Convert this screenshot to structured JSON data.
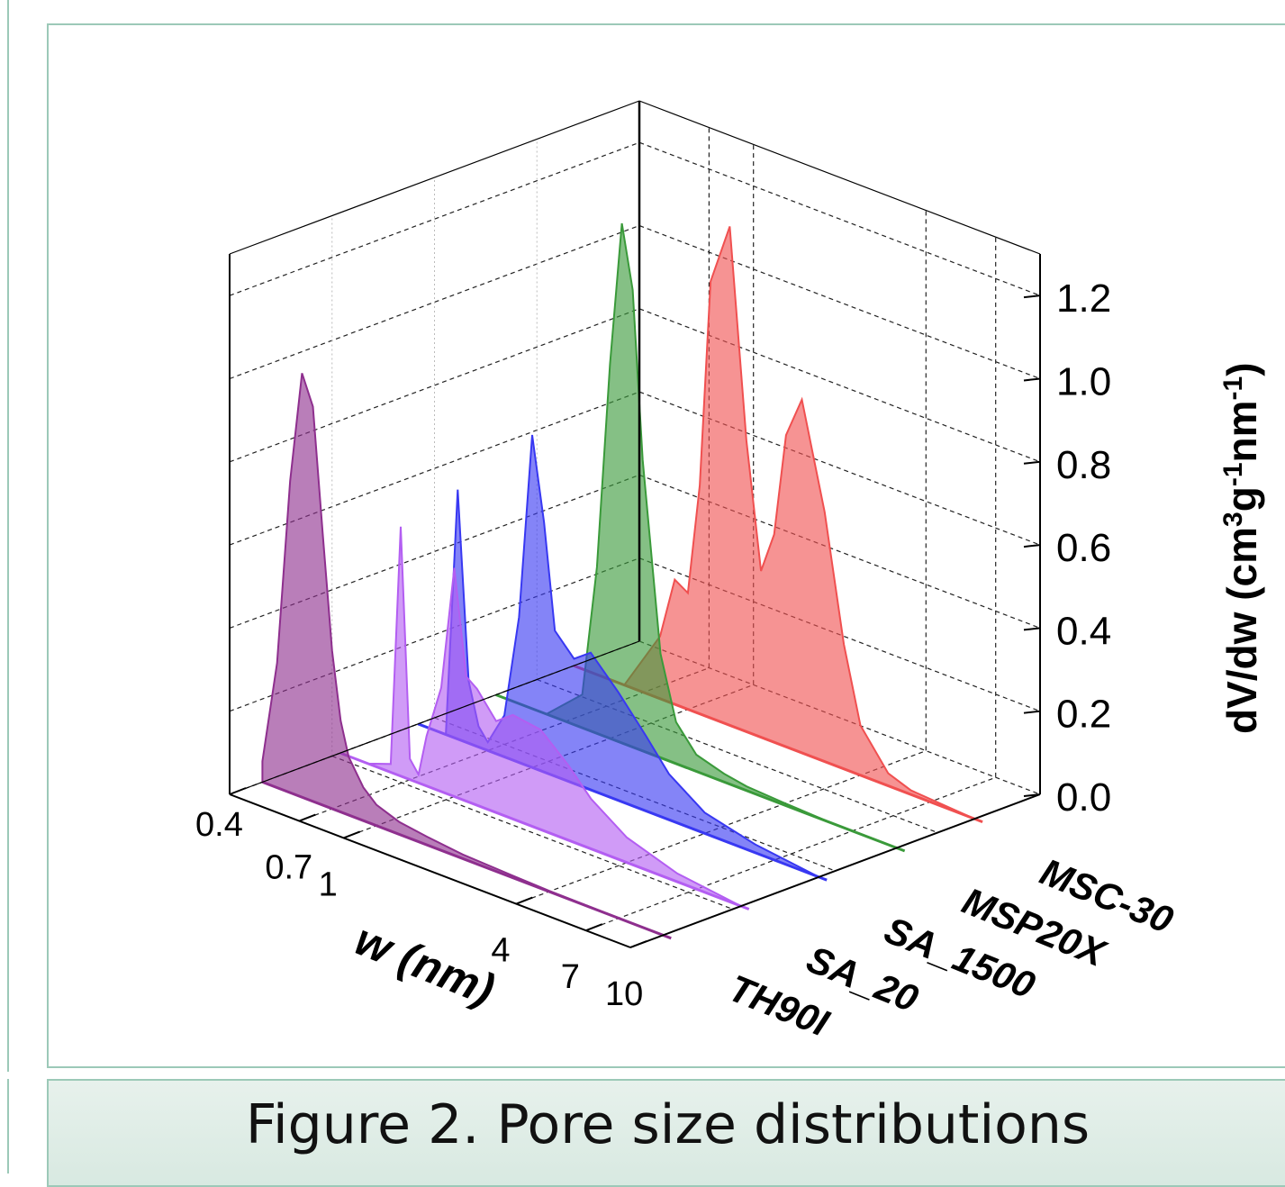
{
  "caption": "Figure 2. Pore size distributions",
  "chart_data": {
    "type": "area",
    "projection": "3d-waterfall",
    "x_axis": {
      "label": "w (nm)",
      "ticks": [
        "0.4",
        "0.7",
        "1",
        "4",
        "7",
        "10"
      ],
      "scale": "log",
      "range": [
        0.4,
        10
      ]
    },
    "z_axis": {
      "label_main": "dV/dw (cm",
      "label_sup1": "3",
      "label_mid1": "g",
      "label_sup2": "-1",
      "label_mid2": "nm",
      "label_sup3": "-1",
      "label_end": ")",
      "ticks": [
        "0.0",
        "0.2",
        "0.4",
        "0.6",
        "0.8",
        "1.0",
        "1.2"
      ],
      "range": [
        0,
        1.3
      ]
    },
    "series_axis_labels": [
      "TH90I",
      "SA_20",
      "SA_1500",
      "MSP20X",
      "MSC-30"
    ],
    "grid": true,
    "series": [
      {
        "name": "TH90I",
        "color": "#8e2f8e",
        "x": [
          0.4,
          0.45,
          0.5,
          0.55,
          0.6,
          0.65,
          0.7,
          0.75,
          0.8,
          0.9,
          1.0,
          1.2,
          1.5,
          2,
          3,
          4,
          6,
          10
        ],
        "y": [
          0.05,
          0.3,
          0.75,
          1.02,
          0.95,
          0.65,
          0.38,
          0.22,
          0.14,
          0.08,
          0.05,
          0.03,
          0.02,
          0.01,
          0.005,
          0.002,
          0.001,
          0.0
        ]
      },
      {
        "name": "SA_20",
        "color": "#b35ef2",
        "x": [
          0.4,
          0.5,
          0.6,
          0.65,
          0.7,
          0.75,
          0.8,
          0.9,
          1.0,
          1.1,
          1.2,
          1.4,
          1.6,
          2,
          2.5,
          3,
          4,
          6,
          10
        ],
        "y": [
          0.0,
          0.0,
          0.02,
          0.6,
          0.05,
          0.02,
          0.12,
          0.25,
          0.55,
          0.3,
          0.28,
          0.22,
          0.25,
          0.24,
          0.18,
          0.12,
          0.06,
          0.02,
          0.0
        ]
      },
      {
        "name": "SA_1500",
        "color": "#3838f2",
        "x": [
          0.4,
          0.5,
          0.55,
          0.6,
          0.65,
          0.7,
          0.8,
          0.9,
          1.0,
          1.1,
          1.2,
          1.4,
          1.6,
          2,
          2.5,
          3,
          4,
          6,
          10
        ],
        "y": [
          0.0,
          0.0,
          0.6,
          0.15,
          0.05,
          0.02,
          0.1,
          0.35,
          0.8,
          0.6,
          0.35,
          0.3,
          0.33,
          0.26,
          0.18,
          0.11,
          0.05,
          0.02,
          0.0
        ]
      },
      {
        "name": "MSP20X",
        "color": "#3a9a3a",
        "x": [
          0.4,
          0.6,
          0.8,
          0.9,
          1.0,
          1.1,
          1.2,
          1.3,
          1.5,
          1.7,
          2,
          2.5,
          3,
          4,
          6,
          10
        ],
        "y": [
          0.0,
          0.0,
          0.08,
          0.4,
          0.9,
          1.25,
          1.1,
          0.7,
          0.25,
          0.1,
          0.04,
          0.02,
          0.01,
          0.005,
          0.0,
          0.0
        ]
      },
      {
        "name": "MSC-30",
        "color": "#f05050",
        "x": [
          0.4,
          0.6,
          0.8,
          0.9,
          1.0,
          1.1,
          1.2,
          1.4,
          1.6,
          1.8,
          2,
          2.2,
          2.5,
          3,
          3.5,
          4,
          5,
          6,
          10
        ],
        "y": [
          0.0,
          0.0,
          0.15,
          0.3,
          0.28,
          0.55,
          1.05,
          1.2,
          0.7,
          0.4,
          0.5,
          0.75,
          0.85,
          0.6,
          0.3,
          0.12,
          0.03,
          0.01,
          0.0
        ]
      }
    ]
  }
}
